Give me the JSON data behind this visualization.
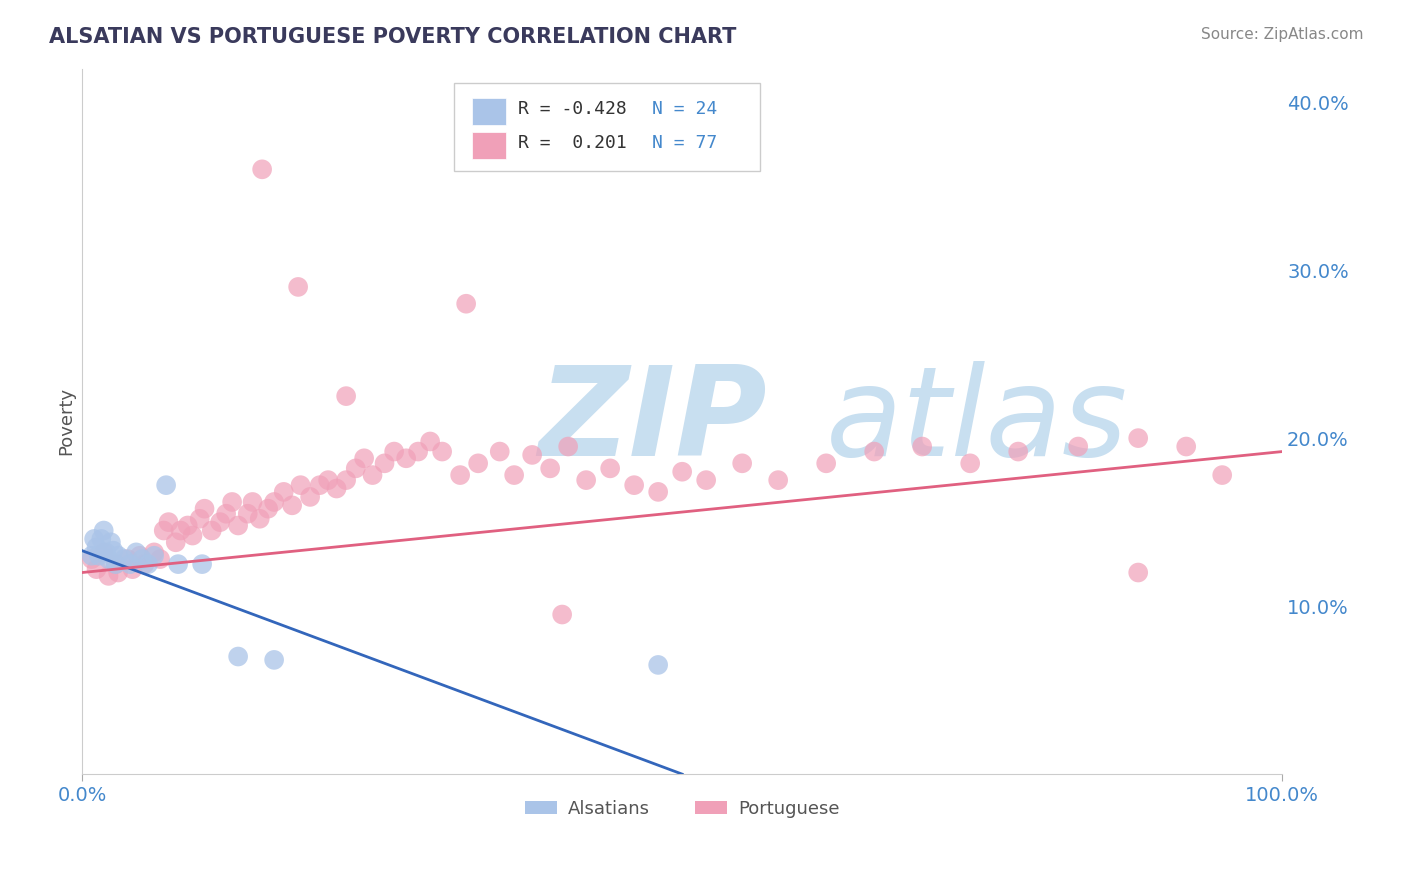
{
  "title": "ALSATIAN VS PORTUGUESE POVERTY CORRELATION CHART",
  "source": "Source: ZipAtlas.com",
  "ylabel": "Poverty",
  "xlim": [
    0,
    1.0
  ],
  "ylim": [
    0,
    0.42
  ],
  "yticks": [
    0.1,
    0.2,
    0.3,
    0.4
  ],
  "ytick_labels": [
    "10.0%",
    "20.0%",
    "30.0%",
    "40.0%"
  ],
  "grid_color": "#c8c8c8",
  "background_color": "#ffffff",
  "alsatian_color": "#aac4e8",
  "portuguese_color": "#f0a0b8",
  "alsatian_line_color": "#3366bb",
  "portuguese_line_color": "#e06080",
  "watermark_zip_color": "#c8dff0",
  "watermark_atlas_color": "#c8dff0",
  "tick_color": "#4488cc",
  "alsatian_label": "Alsatians",
  "portuguese_label": "Portuguese",
  "alsatian_N": 24,
  "portuguese_N": 77,
  "alsatian_R": -0.428,
  "portuguese_R": 0.201,
  "als_x": [
    0.008,
    0.01,
    0.012,
    0.014,
    0.016,
    0.018,
    0.02,
    0.022,
    0.024,
    0.026,
    0.028,
    0.03,
    0.035,
    0.04,
    0.045,
    0.05,
    0.055,
    0.06,
    0.07,
    0.08,
    0.1,
    0.13,
    0.16,
    0.48
  ],
  "als_y": [
    0.13,
    0.14,
    0.135,
    0.13,
    0.14,
    0.145,
    0.132,
    0.128,
    0.138,
    0.133,
    0.125,
    0.13,
    0.128,
    0.125,
    0.132,
    0.128,
    0.125,
    0.13,
    0.172,
    0.125,
    0.125,
    0.07,
    0.068,
    0.065
  ],
  "por_x": [
    0.008,
    0.012,
    0.018,
    0.022,
    0.028,
    0.03,
    0.038,
    0.042,
    0.048,
    0.052,
    0.06,
    0.065,
    0.068,
    0.072,
    0.078,
    0.082,
    0.088,
    0.092,
    0.098,
    0.102,
    0.108,
    0.115,
    0.12,
    0.125,
    0.13,
    0.138,
    0.142,
    0.148,
    0.155,
    0.16,
    0.168,
    0.175,
    0.182,
    0.19,
    0.198,
    0.205,
    0.212,
    0.22,
    0.228,
    0.235,
    0.242,
    0.252,
    0.26,
    0.27,
    0.28,
    0.29,
    0.3,
    0.315,
    0.33,
    0.348,
    0.36,
    0.375,
    0.39,
    0.405,
    0.42,
    0.44,
    0.46,
    0.48,
    0.5,
    0.52,
    0.55,
    0.58,
    0.62,
    0.66,
    0.7,
    0.74,
    0.78,
    0.83,
    0.88,
    0.92,
    0.95,
    0.22,
    0.32,
    0.15,
    0.4,
    0.18,
    0.88
  ],
  "por_y": [
    0.128,
    0.122,
    0.132,
    0.118,
    0.125,
    0.12,
    0.128,
    0.122,
    0.13,
    0.125,
    0.132,
    0.128,
    0.145,
    0.15,
    0.138,
    0.145,
    0.148,
    0.142,
    0.152,
    0.158,
    0.145,
    0.15,
    0.155,
    0.162,
    0.148,
    0.155,
    0.162,
    0.152,
    0.158,
    0.162,
    0.168,
    0.16,
    0.172,
    0.165,
    0.172,
    0.175,
    0.17,
    0.175,
    0.182,
    0.188,
    0.178,
    0.185,
    0.192,
    0.188,
    0.192,
    0.198,
    0.192,
    0.178,
    0.185,
    0.192,
    0.178,
    0.19,
    0.182,
    0.195,
    0.175,
    0.182,
    0.172,
    0.168,
    0.18,
    0.175,
    0.185,
    0.175,
    0.185,
    0.192,
    0.195,
    0.185,
    0.192,
    0.195,
    0.2,
    0.195,
    0.178,
    0.225,
    0.28,
    0.36,
    0.095,
    0.29,
    0.12
  ],
  "por_line_x0": 0.0,
  "por_line_x1": 1.0,
  "por_line_y0": 0.12,
  "por_line_y1": 0.192,
  "als_line_x0": 0.0,
  "als_line_x1": 0.5,
  "als_line_y0": 0.133,
  "als_line_y1": 0.0
}
